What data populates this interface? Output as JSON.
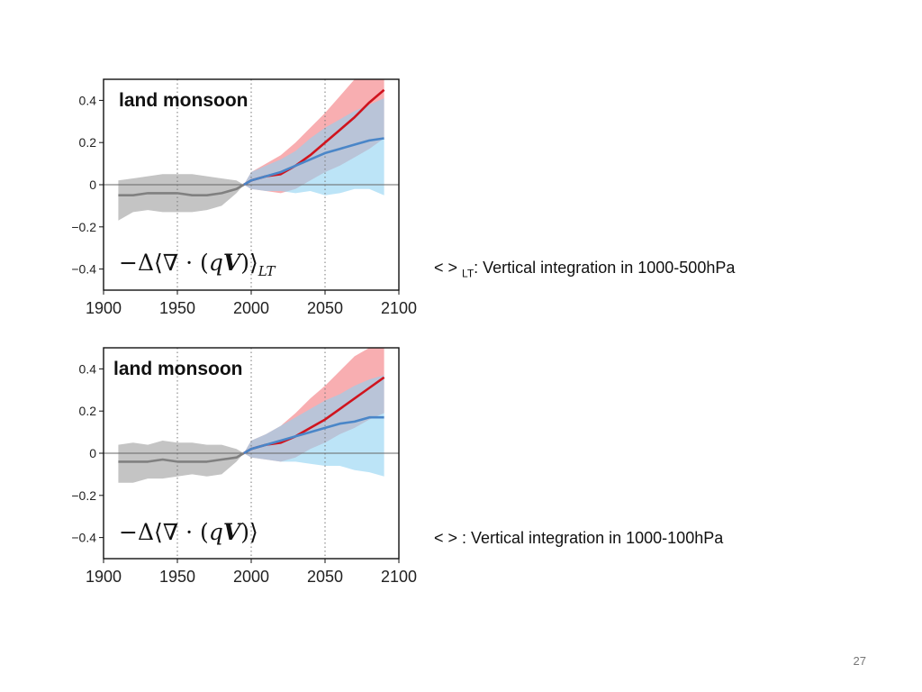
{
  "slide": {
    "page_number": "27",
    "annotations": [
      {
        "prefix": "< > ",
        "subscript": "LT",
        "text": ": Vertical integration in 1000-500hPa"
      },
      {
        "prefix": "< > ",
        "subscript": "",
        "text": ": Vertical integration in 1000-100hPa"
      }
    ]
  },
  "colors": {
    "historical": "#808080",
    "historical_band": "#c4c4c4",
    "red_series": "#d0141e",
    "red_band": "#f7a0a3",
    "blue_series": "#4a86c8",
    "blue_band": "#8fd2f2",
    "overlap_band": "#9ea8c8"
  },
  "chart_data": [
    {
      "type": "line",
      "title": "land monsoon",
      "formula": {
        "lead": "−Δ⟨∇ · (",
        "var_q": "q",
        "var_v": "V",
        "close": ")⟩",
        "subscript": "LT"
      },
      "xlim": [
        1900,
        2100
      ],
      "ylim": [
        -0.5,
        0.5
      ],
      "xticks": [
        1900,
        1950,
        2000,
        2050,
        2100
      ],
      "xtick_labels": [
        "1900",
        "1950",
        "2000",
        "2050",
        "2100"
      ],
      "yticks": [
        0.4,
        0.2,
        0,
        -0.2,
        -0.4
      ],
      "ytick_labels": [
        "0.4",
        "0.2",
        "0",
        "−0.2",
        "−0.4"
      ],
      "grid": "dotted vertical at 1950, 2000, 2050; horizontal line at 0",
      "series": [
        {
          "x": [
            1910,
            1920,
            1930,
            1940,
            1950,
            1960,
            1970,
            1980,
            1990,
            1995
          ],
          "values": [
            -0.05,
            -0.05,
            -0.04,
            -0.04,
            -0.04,
            -0.05,
            -0.05,
            -0.04,
            -0.02,
            0.0
          ],
          "band_low": [
            -0.17,
            -0.13,
            -0.12,
            -0.13,
            -0.13,
            -0.13,
            -0.12,
            -0.1,
            -0.04,
            0.0
          ],
          "band_high": [
            0.02,
            0.03,
            0.04,
            0.05,
            0.05,
            0.05,
            0.04,
            0.03,
            0.02,
            0.0
          ]
        },
        {
          "x": [
            1995,
            2000,
            2010,
            2020,
            2030,
            2040,
            2050,
            2060,
            2070,
            2080,
            2090
          ],
          "values": [
            0.0,
            0.02,
            0.04,
            0.05,
            0.09,
            0.14,
            0.2,
            0.26,
            0.32,
            0.39,
            0.45
          ],
          "band_low": [
            0.0,
            -0.02,
            -0.03,
            -0.04,
            -0.02,
            0.02,
            0.06,
            0.09,
            0.13,
            0.17,
            0.22
          ],
          "band_high": [
            0.0,
            0.06,
            0.1,
            0.14,
            0.2,
            0.27,
            0.34,
            0.42,
            0.5,
            0.5,
            0.5
          ]
        },
        {
          "x": [
            1995,
            2000,
            2010,
            2020,
            2030,
            2040,
            2050,
            2060,
            2070,
            2080,
            2090
          ],
          "values": [
            0.0,
            0.02,
            0.04,
            0.06,
            0.09,
            0.12,
            0.15,
            0.17,
            0.19,
            0.21,
            0.22
          ],
          "band_low": [
            0.0,
            -0.02,
            -0.03,
            -0.03,
            -0.04,
            -0.03,
            -0.05,
            -0.04,
            -0.02,
            -0.02,
            -0.05
          ],
          "band_high": [
            0.0,
            0.06,
            0.09,
            0.12,
            0.16,
            0.22,
            0.27,
            0.31,
            0.35,
            0.38,
            0.41
          ]
        }
      ]
    },
    {
      "type": "line",
      "title": "land monsoon",
      "formula": {
        "lead": "−Δ⟨∇ · (",
        "var_q": "q",
        "var_v": "V",
        "close": ")⟩",
        "subscript": ""
      },
      "xlim": [
        1900,
        2100
      ],
      "ylim": [
        -0.5,
        0.5
      ],
      "xticks": [
        1900,
        1950,
        2000,
        2050,
        2100
      ],
      "xtick_labels": [
        "1900",
        "1950",
        "2000",
        "2050",
        "2100"
      ],
      "yticks": [
        0.4,
        0.2,
        0,
        -0.2,
        -0.4
      ],
      "ytick_labels": [
        "0.4",
        "0.2",
        "0",
        "−0.2",
        "−0.4"
      ],
      "grid": "dotted vertical at 1950, 2000, 2050; horizontal line at 0",
      "series": [
        {
          "x": [
            1910,
            1920,
            1930,
            1940,
            1950,
            1960,
            1970,
            1980,
            1990,
            1995
          ],
          "values": [
            -0.04,
            -0.04,
            -0.04,
            -0.03,
            -0.04,
            -0.04,
            -0.04,
            -0.03,
            -0.02,
            0.0
          ],
          "band_low": [
            -0.14,
            -0.14,
            -0.12,
            -0.12,
            -0.11,
            -0.1,
            -0.11,
            -0.1,
            -0.04,
            0.0
          ],
          "band_high": [
            0.04,
            0.05,
            0.04,
            0.06,
            0.05,
            0.05,
            0.04,
            0.04,
            0.02,
            0.0
          ]
        },
        {
          "x": [
            1995,
            2000,
            2010,
            2020,
            2030,
            2040,
            2050,
            2060,
            2070,
            2080,
            2090
          ],
          "values": [
            0.0,
            0.02,
            0.04,
            0.05,
            0.08,
            0.12,
            0.16,
            0.21,
            0.26,
            0.31,
            0.36
          ],
          "band_low": [
            0.0,
            -0.02,
            -0.03,
            -0.04,
            -0.02,
            0.02,
            0.05,
            0.09,
            0.12,
            0.16,
            0.19
          ],
          "band_high": [
            0.0,
            0.06,
            0.09,
            0.13,
            0.19,
            0.26,
            0.32,
            0.39,
            0.46,
            0.5,
            0.5
          ]
        },
        {
          "x": [
            1995,
            2000,
            2010,
            2020,
            2030,
            2040,
            2050,
            2060,
            2070,
            2080,
            2090
          ],
          "values": [
            0.0,
            0.02,
            0.04,
            0.06,
            0.08,
            0.1,
            0.12,
            0.14,
            0.15,
            0.17,
            0.17
          ],
          "band_low": [
            0.0,
            -0.02,
            -0.03,
            -0.04,
            -0.04,
            -0.05,
            -0.06,
            -0.06,
            -0.08,
            -0.09,
            -0.11
          ],
          "band_high": [
            0.0,
            0.06,
            0.09,
            0.13,
            0.17,
            0.21,
            0.25,
            0.28,
            0.32,
            0.35,
            0.37
          ]
        }
      ]
    }
  ]
}
